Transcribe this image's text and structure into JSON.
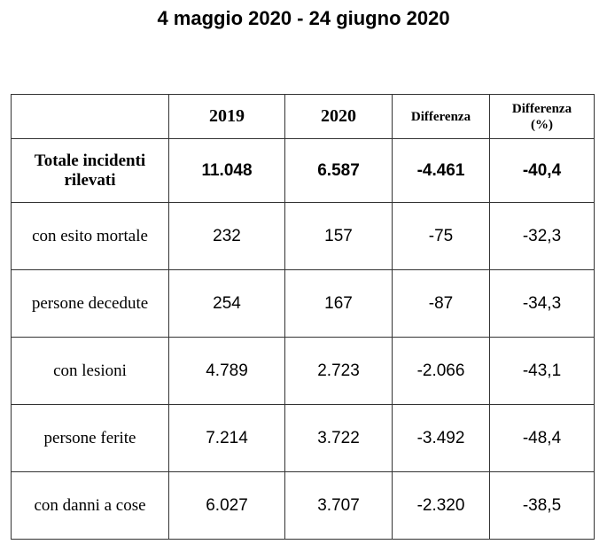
{
  "title": "4 maggio 2020 - 24 giugno 2020",
  "table": {
    "headers": [
      "",
      "2019",
      "2020",
      "Differenza",
      "Differenza (%)"
    ],
    "rows": [
      {
        "label": "Totale incidenti rilevati",
        "v2019": "11.048",
        "v2020": "6.587",
        "diff": "-4.461",
        "pct": "-40,4"
      },
      {
        "label": "con esito mortale",
        "v2019": "232",
        "v2020": "157",
        "diff": "-75",
        "pct": "-32,3"
      },
      {
        "label": "persone decedute",
        "v2019": "254",
        "v2020": "167",
        "diff": "-87",
        "pct": "-34,3"
      },
      {
        "label": "con lesioni",
        "v2019": "4.789",
        "v2020": "2.723",
        "diff": "-2.066",
        "pct": "-43,1"
      },
      {
        "label": "persone ferite",
        "v2019": "7.214",
        "v2020": "3.722",
        "diff": "-3.492",
        "pct": "-48,4"
      },
      {
        "label": "con danni a cose",
        "v2019": "6.027",
        "v2020": "3.707",
        "diff": "-2.320",
        "pct": "-38,5"
      }
    ]
  }
}
